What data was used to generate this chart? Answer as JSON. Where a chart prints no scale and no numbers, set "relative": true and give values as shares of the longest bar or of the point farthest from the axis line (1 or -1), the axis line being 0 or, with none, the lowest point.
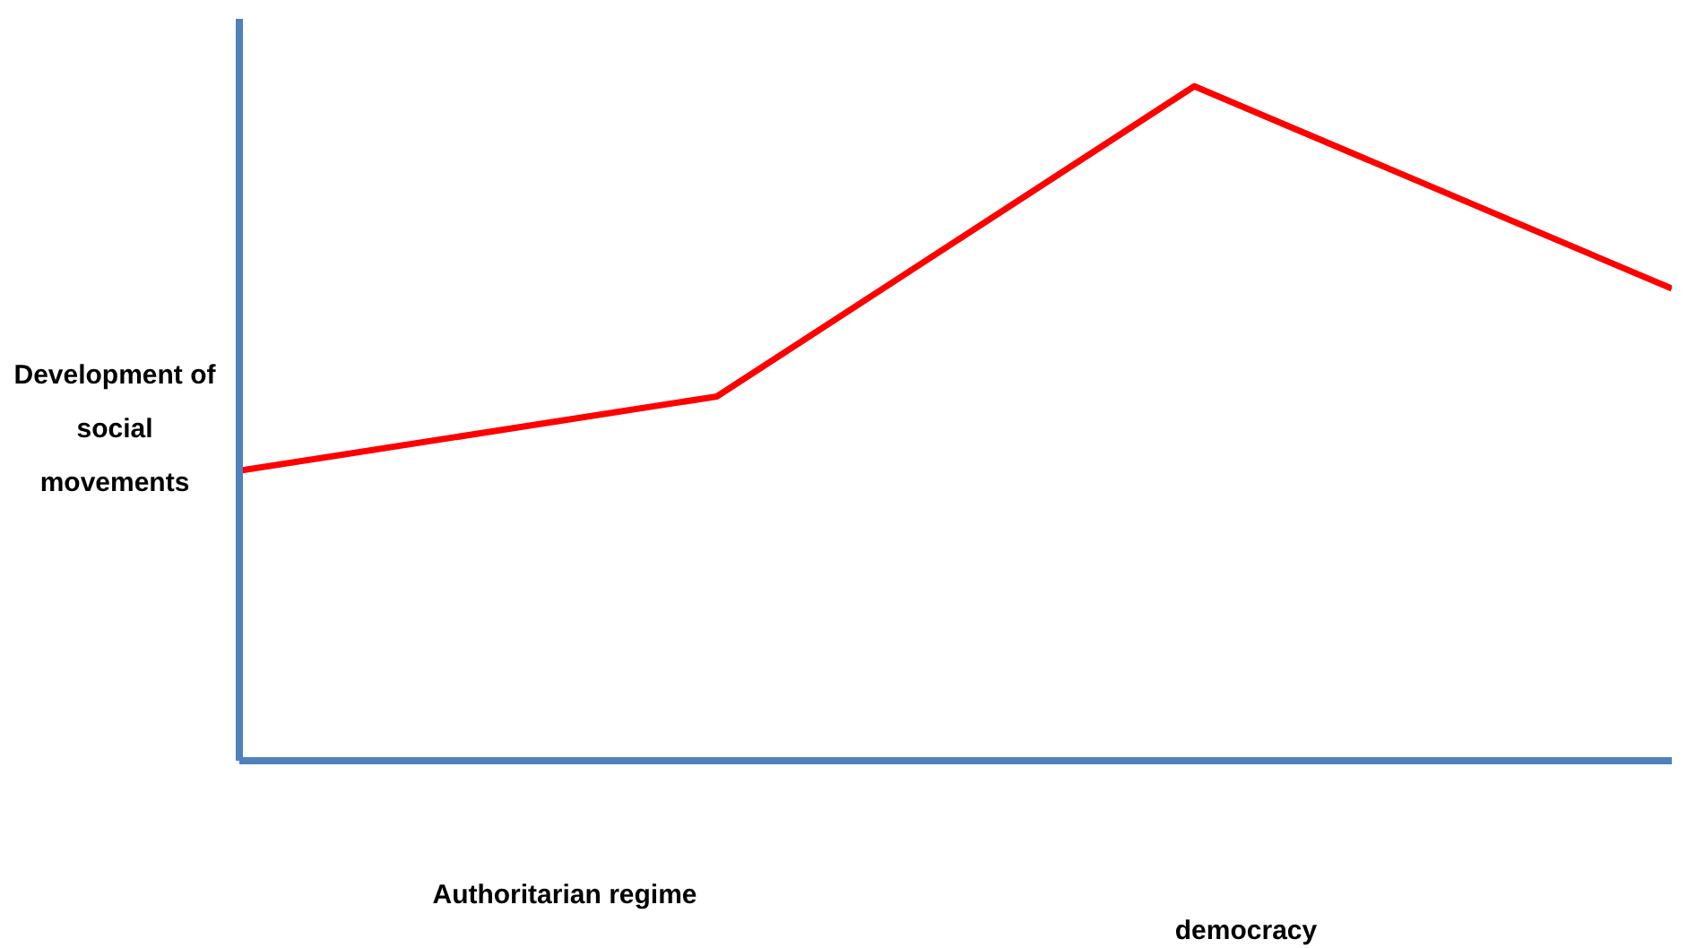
{
  "chart_data": {
    "type": "line",
    "relative": true,
    "ylabel": "Development of social movements",
    "categories": [
      null,
      null,
      null,
      null
    ],
    "series": [
      {
        "color": "#ff0000",
        "values": [
          0.43,
          0.54,
          1,
          0.7
        ]
      }
    ],
    "annotations": [
      "Authoritarian regime",
      "democracy"
    ],
    "marker": "none",
    "line_style": "solid"
  }
}
